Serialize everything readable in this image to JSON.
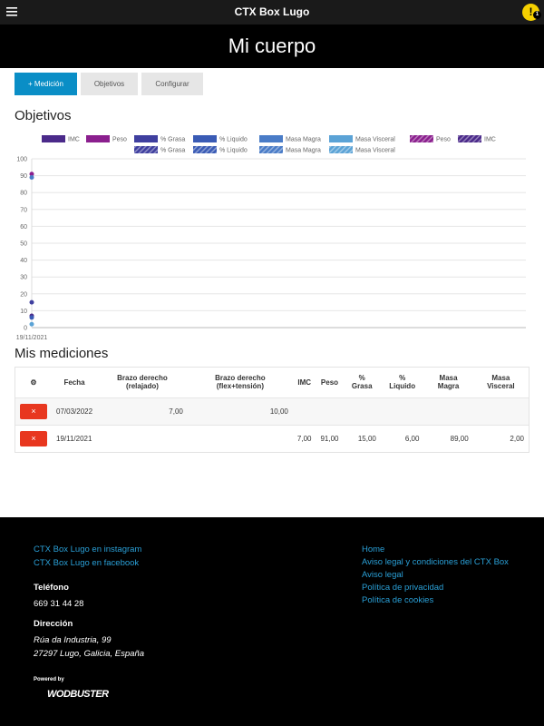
{
  "topbar": {
    "title": "CTX Box Lugo",
    "badge": "1"
  },
  "header": {
    "title": "Mi cuerpo"
  },
  "tabs": [
    "+ Medición",
    "Objetivos",
    "Configurar"
  ],
  "objectives_title": "Objetivos",
  "chart_data": {
    "type": "scatter",
    "categories": [
      "19/11/2021"
    ],
    "ylim": [
      0,
      100
    ],
    "yticks": [
      0,
      10,
      20,
      30,
      40,
      50,
      60,
      70,
      80,
      90,
      100
    ],
    "grid": true,
    "series": [
      {
        "name": "IMC",
        "color": "#4b2a8a",
        "values": [
          7
        ]
      },
      {
        "name": "Peso",
        "color": "#8b1f8e",
        "values": [
          91
        ]
      },
      {
        "name": "% Grasa",
        "color": "#3f3f9f",
        "values": [
          15
        ]
      },
      {
        "name": "% Liquido",
        "color": "#3a5bb5",
        "values": [
          6
        ]
      },
      {
        "name": "Masa Magra",
        "color": "#4a7cc7",
        "values": [
          89
        ]
      },
      {
        "name": "Masa Visceral",
        "color": "#5ba3d6",
        "values": [
          2
        ]
      },
      {
        "name": "Peso",
        "color": "#8b1f8e",
        "pattern": true,
        "values": [
          null
        ]
      },
      {
        "name": "IMC",
        "color": "#4b2a8a",
        "pattern": true,
        "values": [
          null
        ]
      },
      {
        "name": "% Grasa",
        "color": "#3f3f9f",
        "pattern": true,
        "values": [
          null
        ]
      },
      {
        "name": "% Liquido",
        "color": "#3a5bb5",
        "pattern": true,
        "values": [
          null
        ]
      },
      {
        "name": "Masa Magra",
        "color": "#4a7cc7",
        "pattern": true,
        "values": [
          null
        ]
      },
      {
        "name": "Masa Visceral",
        "color": "#5ba3d6",
        "pattern": true,
        "values": [
          null
        ]
      }
    ]
  },
  "measurements_title": "Mis mediciones",
  "table": {
    "columns": [
      "Fecha",
      "Brazo derecho (relajado)",
      "Brazo derecho (flex+tensión)",
      "IMC",
      "Peso",
      "% Grasa",
      "% Liquido",
      "Masa Magra",
      "Masa Visceral"
    ],
    "rows": [
      [
        "07/03/2022",
        "7,00",
        "10,00",
        null,
        null,
        null,
        null,
        null,
        null
      ],
      [
        "19/11/2021",
        null,
        null,
        "7,00",
        "91,00",
        "15,00",
        "6,00",
        "89,00",
        "2,00"
      ]
    ]
  },
  "footer": {
    "social": [
      "CTX Box Lugo en instagram",
      "CTX Box Lugo en facebook"
    ],
    "phone_label": "Teléfono",
    "phone": "669 31 44 28",
    "address_label": "Dirección",
    "address": [
      "Rúa da Industria, 99",
      "27297 Lugo, Galicia, España"
    ],
    "powered": "Powered by",
    "brand": "WODBUSTER",
    "links": [
      "Home",
      "Aviso legal y condiciones del CTX Box",
      "Aviso legal",
      "Política de privacidad",
      "Política de cookies"
    ]
  }
}
